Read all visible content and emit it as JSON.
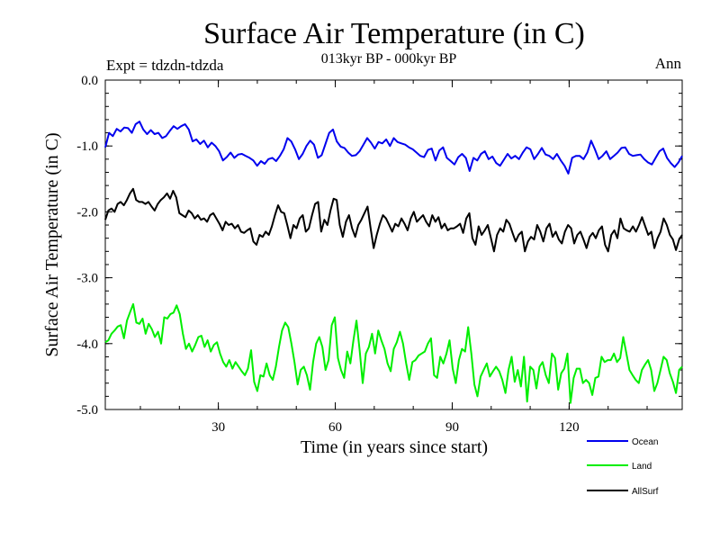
{
  "chart_data": {
    "type": "line",
    "title": "Surface Air Temperature (in C)",
    "subtitle": "013kyr BP - 000kyr BP",
    "left_label": "Expt = tdzdn-tdzda",
    "right_label": "Ann",
    "xlabel": "Time (in years since start)",
    "ylabel": "Surface Air Temperature (in C)",
    "xlim": [
      1,
      149
    ],
    "ylim": [
      -5.0,
      0.0
    ],
    "xticks": [
      30,
      60,
      90,
      120
    ],
    "xtick_labels": [
      "30",
      "60",
      "90",
      "120"
    ],
    "yticks": [
      0.0,
      -1.0,
      -2.0,
      -3.0,
      -4.0,
      -5.0
    ],
    "ytick_labels": [
      "0.0",
      "-1.0",
      "-2.0",
      "-3.0",
      "-4.0",
      "-5.0"
    ],
    "legend_position": "bottom-right",
    "series": [
      {
        "name": "Ocean",
        "color": "#0000ee",
        "values": [
          -1.02,
          -0.8,
          -0.85,
          -0.74,
          -0.78,
          -0.72,
          -0.73,
          -0.8,
          -0.67,
          -0.63,
          -0.75,
          -0.82,
          -0.76,
          -0.82,
          -0.8,
          -0.88,
          -0.85,
          -0.77,
          -0.7,
          -0.74,
          -0.7,
          -0.67,
          -0.75,
          -0.93,
          -0.9,
          -0.97,
          -0.92,
          -1.02,
          -0.95,
          -1.0,
          -1.08,
          -1.22,
          -1.17,
          -1.1,
          -1.18,
          -1.13,
          -1.12,
          -1.15,
          -1.18,
          -1.22,
          -1.3,
          -1.23,
          -1.27,
          -1.2,
          -1.18,
          -1.23,
          -1.15,
          -1.05,
          -0.88,
          -0.93,
          -1.05,
          -1.2,
          -1.12,
          -1.0,
          -0.92,
          -0.98,
          -1.18,
          -1.14,
          -0.97,
          -0.8,
          -0.75,
          -0.93,
          -1.01,
          -1.03,
          -1.1,
          -1.15,
          -1.14,
          -1.08,
          -0.98,
          -0.88,
          -0.95,
          -1.04,
          -0.94,
          -0.96,
          -0.9,
          -1.0,
          -0.88,
          -0.94,
          -0.96,
          -0.98,
          -1.02,
          -1.05,
          -1.1,
          -1.15,
          -1.17,
          -1.06,
          -1.04,
          -1.22,
          -1.07,
          -1.02,
          -1.18,
          -1.23,
          -1.28,
          -1.17,
          -1.12,
          -1.18,
          -1.38,
          -1.18,
          -1.22,
          -1.12,
          -1.08,
          -1.2,
          -1.16,
          -1.26,
          -1.3,
          -1.21,
          -1.12,
          -1.19,
          -1.15,
          -1.2,
          -1.1,
          -1.02,
          -1.05,
          -1.2,
          -1.12,
          -1.03,
          -1.13,
          -1.15,
          -1.2,
          -1.12,
          -1.22,
          -1.3,
          -1.42,
          -1.18,
          -1.15,
          -1.15,
          -1.2,
          -1.1,
          -0.92,
          -1.05,
          -1.2,
          -1.15,
          -1.08,
          -1.2,
          -1.15,
          -1.1,
          -1.03,
          -1.02,
          -1.12,
          -1.15,
          -1.14,
          -1.13,
          -1.2,
          -1.25,
          -1.28,
          -1.18,
          -1.08,
          -1.04,
          -1.18,
          -1.26,
          -1.32,
          -1.25,
          -1.15
        ]
      },
      {
        "name": "Land",
        "color": "#00ee00",
        "values": [
          -3.98,
          -3.95,
          -3.85,
          -3.8,
          -3.74,
          -3.72,
          -3.92,
          -3.65,
          -3.52,
          -3.4,
          -3.68,
          -3.7,
          -3.62,
          -3.85,
          -3.7,
          -3.78,
          -3.9,
          -3.82,
          -4.0,
          -3.6,
          -3.62,
          -3.55,
          -3.53,
          -3.42,
          -3.55,
          -3.85,
          -4.08,
          -4.0,
          -4.12,
          -4.02,
          -3.9,
          -3.88,
          -4.05,
          -3.95,
          -4.12,
          -4.02,
          -3.98,
          -4.15,
          -4.28,
          -4.35,
          -4.25,
          -4.38,
          -4.28,
          -4.35,
          -4.42,
          -4.48,
          -4.38,
          -4.1,
          -4.58,
          -4.72,
          -4.48,
          -4.5,
          -4.3,
          -4.48,
          -4.55,
          -4.35,
          -4.05,
          -3.8,
          -3.68,
          -3.75,
          -4.0,
          -4.28,
          -4.62,
          -4.4,
          -4.35,
          -4.48,
          -4.7,
          -4.28,
          -4.0,
          -3.9,
          -4.05,
          -4.4,
          -4.25,
          -3.72,
          -3.6,
          -4.22,
          -4.4,
          -4.52,
          -4.12,
          -4.3,
          -3.95,
          -3.65,
          -4.1,
          -4.6,
          -4.15,
          -4.05,
          -3.85,
          -4.15,
          -3.8,
          -3.95,
          -4.08,
          -4.3,
          -4.42,
          -4.08,
          -3.98,
          -3.82,
          -4.0,
          -4.3,
          -4.55,
          -4.28,
          -4.25,
          -4.18,
          -4.15,
          -4.12,
          -4.0,
          -3.92,
          -4.48,
          -4.52,
          -4.2,
          -4.3,
          -4.15,
          -3.95,
          -4.38,
          -4.6,
          -4.25,
          -4.08,
          -4.12,
          -3.75,
          -4.15,
          -4.62,
          -4.8,
          -4.5,
          -4.4,
          -4.3,
          -4.5,
          -4.42,
          -4.35,
          -4.42,
          -4.55,
          -4.75,
          -4.4,
          -4.2,
          -4.58,
          -4.4,
          -4.65,
          -4.2,
          -4.88,
          -4.35,
          -4.4,
          -4.68,
          -4.35,
          -4.28,
          -4.48,
          -4.6,
          -4.15,
          -4.22,
          -4.7,
          -4.45,
          -4.38,
          -4.15,
          -4.9,
          -4.52,
          -4.38,
          -4.38,
          -4.6,
          -4.55,
          -4.6,
          -4.78,
          -4.52,
          -4.5,
          -4.2,
          -4.28,
          -4.25,
          -4.25,
          -4.15,
          -4.28,
          -4.22,
          -3.9,
          -4.15,
          -4.4,
          -4.48,
          -4.55,
          -4.6,
          -4.4,
          -4.32,
          -4.25,
          -4.4,
          -4.72,
          -4.6,
          -4.4,
          -4.2,
          -4.25,
          -4.45,
          -4.58,
          -4.75,
          -4.4,
          -4.35
        ]
      },
      {
        "name": "AllSurf",
        "color": "#000000",
        "values": [
          -2.12,
          -1.98,
          -1.95,
          -2.0,
          -1.88,
          -1.85,
          -1.9,
          -1.82,
          -1.72,
          -1.65,
          -1.82,
          -1.85,
          -1.85,
          -1.88,
          -1.85,
          -1.92,
          -1.98,
          -1.88,
          -1.82,
          -1.78,
          -1.72,
          -1.8,
          -1.68,
          -1.78,
          -2.02,
          -2.05,
          -2.08,
          -1.98,
          -2.02,
          -2.1,
          -2.05,
          -2.12,
          -2.1,
          -2.15,
          -2.05,
          -2.02,
          -2.1,
          -2.18,
          -2.28,
          -2.15,
          -2.2,
          -2.18,
          -2.25,
          -2.2,
          -2.3,
          -2.32,
          -2.28,
          -2.25,
          -2.45,
          -2.5,
          -2.35,
          -2.38,
          -2.3,
          -2.35,
          -2.22,
          -2.05,
          -1.9,
          -2.0,
          -2.02,
          -2.2,
          -2.4,
          -2.2,
          -2.25,
          -2.1,
          -2.05,
          -2.3,
          -2.25,
          -2.05,
          -1.88,
          -1.85,
          -2.3,
          -2.12,
          -2.2,
          -1.98,
          -1.8,
          -1.82,
          -2.2,
          -2.38,
          -2.15,
          -2.05,
          -2.25,
          -2.38,
          -2.2,
          -2.12,
          -2.02,
          -1.92,
          -2.25,
          -2.55,
          -2.35,
          -2.18,
          -2.05,
          -2.1,
          -2.2,
          -2.3,
          -2.18,
          -2.22,
          -2.1,
          -2.18,
          -2.28,
          -2.1,
          -2.0,
          -2.15,
          -2.1,
          -2.05,
          -2.15,
          -2.22,
          -2.05,
          -2.15,
          -2.08,
          -2.25,
          -2.18,
          -2.28,
          -2.25,
          -2.25,
          -2.22,
          -2.18,
          -2.32,
          -2.1,
          -2.02,
          -2.4,
          -2.5,
          -2.22,
          -2.35,
          -2.28,
          -2.2,
          -2.4,
          -2.6,
          -2.35,
          -2.25,
          -2.3,
          -2.12,
          -2.18,
          -2.32,
          -2.45,
          -2.35,
          -2.3,
          -2.6,
          -2.45,
          -2.38,
          -2.42,
          -2.2,
          -2.3,
          -2.45,
          -2.25,
          -2.18,
          -2.38,
          -2.3,
          -2.42,
          -2.48,
          -2.3,
          -2.2,
          -2.25,
          -2.48,
          -2.35,
          -2.3,
          -2.42,
          -2.55,
          -2.38,
          -2.32,
          -2.4,
          -2.28,
          -2.22,
          -2.5,
          -2.6,
          -2.35,
          -2.28,
          -2.4,
          -2.1,
          -2.25,
          -2.28,
          -2.3,
          -2.22,
          -2.3,
          -2.2,
          -2.08,
          -2.22,
          -2.35,
          -2.3,
          -2.55,
          -2.4,
          -2.3,
          -2.1,
          -2.2,
          -2.35,
          -2.42,
          -2.58,
          -2.42,
          -2.35
        ]
      }
    ]
  }
}
